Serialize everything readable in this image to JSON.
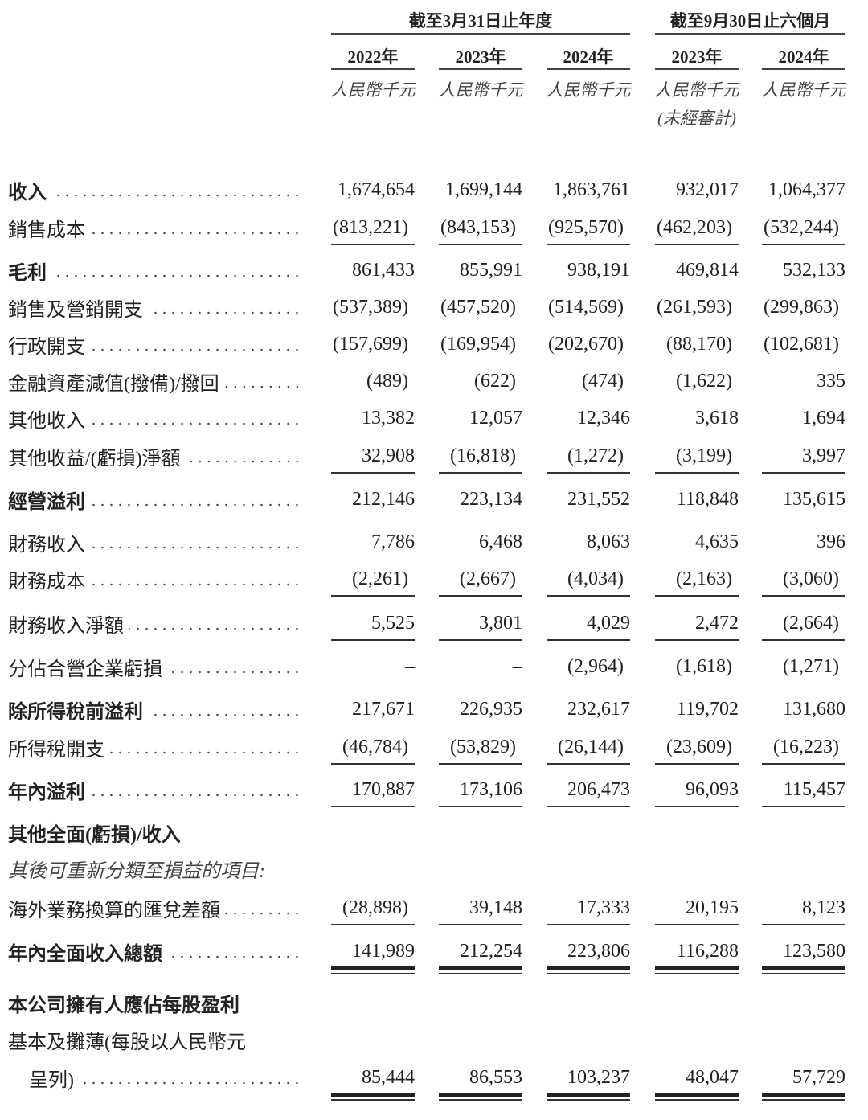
{
  "header": {
    "group_annual": "截至3月31日止年度",
    "group_interim": "截至9月30日止六個月",
    "columns": [
      {
        "year": "2022年",
        "unit": "人民幣千元",
        "note": ""
      },
      {
        "year": "2023年",
        "unit": "人民幣千元",
        "note": ""
      },
      {
        "year": "2024年",
        "unit": "人民幣千元",
        "note": ""
      },
      {
        "year": "2023年",
        "unit": "人民幣千元",
        "note": "(未經審計)"
      },
      {
        "year": "2024年",
        "unit": "人民幣千元",
        "note": ""
      }
    ]
  },
  "rows": [
    {
      "label": "收入",
      "bold": true,
      "values": [
        "1,674,654",
        "1,699,144",
        "1,863,761",
        "932,017",
        "1,064,377"
      ]
    },
    {
      "label": "銷售成本",
      "values": [
        "(813,221)",
        "(843,153)",
        "(925,570)",
        "(462,203)",
        "(532,244)"
      ],
      "rule": "single"
    },
    {
      "label": "毛利",
      "bold": true,
      "values": [
        "861,433",
        "855,991",
        "938,191",
        "469,814",
        "532,133"
      ]
    },
    {
      "label": "銷售及營銷開支",
      "values": [
        "(537,389)",
        "(457,520)",
        "(514,569)",
        "(261,593)",
        "(299,863)"
      ]
    },
    {
      "label": "行政開支",
      "values": [
        "(157,699)",
        "(169,954)",
        "(202,670)",
        "(88,170)",
        "(102,681)"
      ]
    },
    {
      "label": "金融資產減值(撥備)/撥回",
      "values": [
        "(489)",
        "(622)",
        "(474)",
        "(1,622)",
        "335"
      ]
    },
    {
      "label": "其他收入",
      "values": [
        "13,382",
        "12,057",
        "12,346",
        "3,618",
        "1,694"
      ]
    },
    {
      "label": "其他收益/(虧損)淨額",
      "values": [
        "32,908",
        "(16,818)",
        "(1,272)",
        "(3,199)",
        "3,997"
      ],
      "rule": "single"
    },
    {
      "label": "經營溢利",
      "bold": true,
      "values": [
        "212,146",
        "223,134",
        "231,552",
        "118,848",
        "135,615"
      ]
    },
    {
      "label": "財務收入",
      "values": [
        "7,786",
        "6,468",
        "8,063",
        "4,635",
        "396"
      ]
    },
    {
      "label": "財務成本",
      "values": [
        "(2,261)",
        "(2,667)",
        "(4,034)",
        "(2,163)",
        "(3,060)"
      ],
      "rule": "single"
    },
    {
      "label": "財務收入淨額",
      "values": [
        "5,525",
        "3,801",
        "4,029",
        "2,472",
        "(2,664)"
      ],
      "rule": "single"
    },
    {
      "label": "分佔合營企業虧損",
      "values": [
        "–",
        "–",
        "(2,964)",
        "(1,618)",
        "(1,271)"
      ]
    },
    {
      "label": "除所得稅前溢利",
      "bold": true,
      "values": [
        "217,671",
        "226,935",
        "232,617",
        "119,702",
        "131,680"
      ]
    },
    {
      "label": "所得稅開支",
      "values": [
        "(46,784)",
        "(53,829)",
        "(26,144)",
        "(23,609)",
        "(16,223)"
      ],
      "rule": "single"
    },
    {
      "label": "年內溢利",
      "bold": true,
      "values": [
        "170,887",
        "173,106",
        "206,473",
        "96,093",
        "115,457"
      ],
      "rule": "single"
    },
    {
      "label": "其他全面(虧損)/收入",
      "bold": true,
      "nodots": true,
      "values": []
    },
    {
      "label": "其後可重新分類至損益的項目:",
      "italic": true,
      "nodots": true,
      "values": []
    },
    {
      "label": "海外業務換算的匯兌差額",
      "values": [
        "(28,898)",
        "39,148",
        "17,333",
        "20,195",
        "8,123"
      ],
      "rule": "single"
    },
    {
      "label": "年內全面收入總額",
      "bold": true,
      "values": [
        "141,989",
        "212,254",
        "223,806",
        "116,288",
        "123,580"
      ],
      "rule": "double"
    },
    {
      "label": "本公司擁有人應佔每股盈利",
      "bold": true,
      "nodots": true,
      "values": []
    },
    {
      "label": "基本及攤薄(每股以人民幣元",
      "nodots": true,
      "values": []
    },
    {
      "label": "呈列)",
      "indent": true,
      "values": [
        "85,444",
        "86,553",
        "103,237",
        "48,047",
        "57,729"
      ],
      "rule": "double"
    }
  ]
}
